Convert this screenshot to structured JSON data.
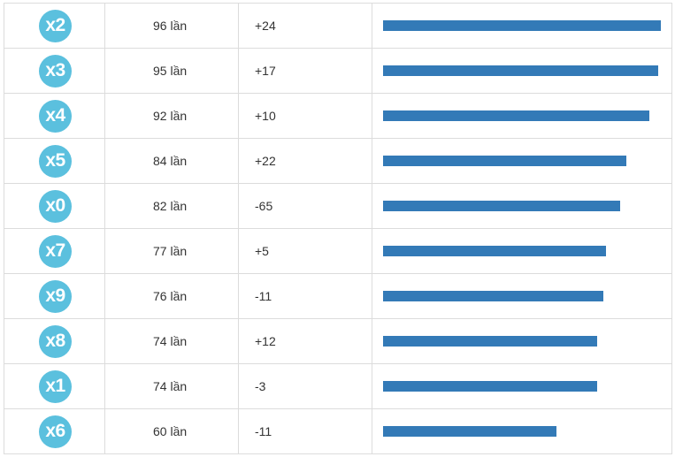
{
  "rows": [
    {
      "label": "x2",
      "count": "96 lần",
      "delta": "+24",
      "fraction": 1.0
    },
    {
      "label": "x3",
      "count": "95 lần",
      "delta": "+17",
      "fraction": 0.99
    },
    {
      "label": "x4",
      "count": "92 lần",
      "delta": "+10",
      "fraction": 0.958
    },
    {
      "label": "x5",
      "count": "84 lần",
      "delta": "+22",
      "fraction": 0.875
    },
    {
      "label": "x0",
      "count": "82 lần",
      "delta": "-65",
      "fraction": 0.854
    },
    {
      "label": "x7",
      "count": "77 lần",
      "delta": "+5",
      "fraction": 0.802
    },
    {
      "label": "x9",
      "count": "76 lần",
      "delta": "-11",
      "fraction": 0.792
    },
    {
      "label": "x8",
      "count": "74 lần",
      "delta": "+12",
      "fraction": 0.771
    },
    {
      "label": "x1",
      "count": "74 lần",
      "delta": "-3",
      "fraction": 0.771
    },
    {
      "label": "x6",
      "count": "60 lần",
      "delta": "-11",
      "fraction": 0.625
    }
  ],
  "colors": {
    "badge": "#5bc0de",
    "bar": "#337ab7",
    "border": "#dcdcdc"
  }
}
